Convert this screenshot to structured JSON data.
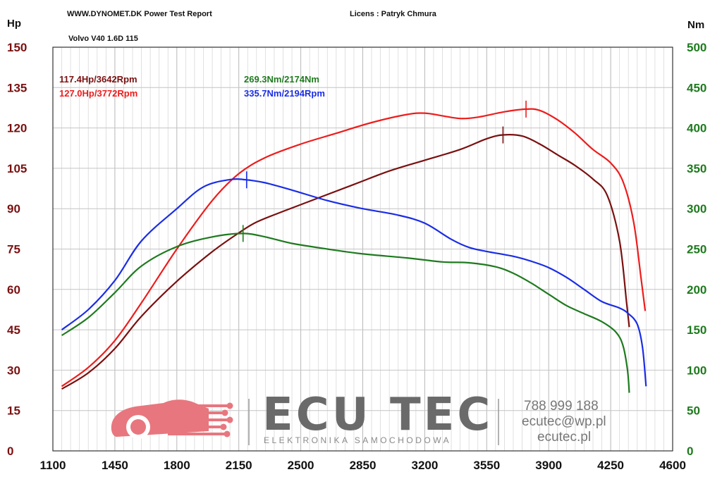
{
  "header": {
    "report": "WWW.DYNOMET.DK  Power Test Report",
    "license": "Licens :  Patryk Chmura",
    "vehicle": "Volvo  V40 1.6D 115"
  },
  "branding": {
    "name": "ECU TEC",
    "tagline": "ELEKTRONIKA SAMOCHODOWA",
    "phone": "788 999 188",
    "email": "ecutec@wp.pl",
    "website": "ecutec.pl",
    "logo_color": "#e8767e"
  },
  "chart_data": {
    "type": "line",
    "xlabel": "",
    "ylabel_left": "Hp",
    "ylabel_right": "Nm",
    "xlim": [
      1100,
      4600
    ],
    "ylim_left": [
      0,
      150
    ],
    "ylim_right": [
      0,
      500
    ],
    "xticks": [
      "1100",
      "1450",
      "1800",
      "2150",
      "2500",
      "2850",
      "3200",
      "3550",
      "3900",
      "4250",
      "4600"
    ],
    "yticks_left": [
      "0",
      "15",
      "30",
      "45",
      "60",
      "75",
      "90",
      "105",
      "120",
      "135",
      "150"
    ],
    "yticks_right": [
      "0",
      "50",
      "100",
      "150",
      "200",
      "250",
      "300",
      "350",
      "400",
      "450",
      "500"
    ],
    "grid": true,
    "annotations": {
      "hp_stock": "117.4Hp/3642Rpm",
      "hp_tuned": "127.0Hp/3772Rpm",
      "nm_stock": "269.3Nm/2174Nm",
      "nm_tuned": "335.7Nm/2194Rpm"
    },
    "series": [
      {
        "axis": "left",
        "color": "#7a1010",
        "peak": [
          3642,
          117.4
        ],
        "points": [
          [
            1150,
            23
          ],
          [
            1300,
            29
          ],
          [
            1450,
            38
          ],
          [
            1600,
            50
          ],
          [
            1800,
            63
          ],
          [
            2000,
            74
          ],
          [
            2150,
            81
          ],
          [
            2250,
            85
          ],
          [
            2400,
            89
          ],
          [
            2600,
            94
          ],
          [
            2800,
            99
          ],
          [
            3000,
            104
          ],
          [
            3200,
            108
          ],
          [
            3400,
            112
          ],
          [
            3550,
            116
          ],
          [
            3642,
            117.4
          ],
          [
            3750,
            117
          ],
          [
            3850,
            114
          ],
          [
            3950,
            110
          ],
          [
            4050,
            106
          ],
          [
            4150,
            101
          ],
          [
            4230,
            95
          ],
          [
            4300,
            78
          ],
          [
            4340,
            55
          ],
          [
            4355,
            46
          ]
        ]
      },
      {
        "axis": "left",
        "color": "#ee1c1c",
        "peak": [
          3772,
          127.0
        ],
        "points": [
          [
            1150,
            24
          ],
          [
            1300,
            31
          ],
          [
            1450,
            41
          ],
          [
            1600,
            55
          ],
          [
            1800,
            75
          ],
          [
            2000,
            93
          ],
          [
            2150,
            103
          ],
          [
            2300,
            109
          ],
          [
            2500,
            114
          ],
          [
            2700,
            118
          ],
          [
            2900,
            122
          ],
          [
            3100,
            125
          ],
          [
            3200,
            125.5
          ],
          [
            3300,
            124.5
          ],
          [
            3400,
            123.5
          ],
          [
            3500,
            124
          ],
          [
            3650,
            126
          ],
          [
            3772,
            127
          ],
          [
            3850,
            126.5
          ],
          [
            3950,
            123
          ],
          [
            4050,
            118
          ],
          [
            4150,
            112
          ],
          [
            4250,
            107
          ],
          [
            4320,
            100
          ],
          [
            4380,
            85
          ],
          [
            4420,
            65
          ],
          [
            4445,
            52
          ]
        ]
      },
      {
        "axis": "right",
        "color": "#1f7a1f",
        "peak": [
          2174,
          269.3
        ],
        "points": [
          [
            1150,
            143
          ],
          [
            1300,
            165
          ],
          [
            1450,
            196
          ],
          [
            1600,
            229
          ],
          [
            1800,
            253
          ],
          [
            2000,
            265
          ],
          [
            2174,
            269.3
          ],
          [
            2300,
            265
          ],
          [
            2450,
            257
          ],
          [
            2650,
            250
          ],
          [
            2850,
            244
          ],
          [
            3100,
            239
          ],
          [
            3300,
            234
          ],
          [
            3450,
            233
          ],
          [
            3600,
            228
          ],
          [
            3700,
            220
          ],
          [
            3800,
            208
          ],
          [
            3900,
            194
          ],
          [
            4000,
            180
          ],
          [
            4100,
            170
          ],
          [
            4200,
            160
          ],
          [
            4280,
            147
          ],
          [
            4320,
            130
          ],
          [
            4345,
            100
          ],
          [
            4355,
            72
          ]
        ]
      },
      {
        "axis": "right",
        "color": "#1a2de6",
        "peak": [
          2194,
          335.7
        ],
        "points": [
          [
            1150,
            150
          ],
          [
            1300,
            175
          ],
          [
            1450,
            211
          ],
          [
            1600,
            260
          ],
          [
            1800,
            300
          ],
          [
            1950,
            327
          ],
          [
            2100,
            336
          ],
          [
            2194,
            335.7
          ],
          [
            2300,
            332
          ],
          [
            2450,
            323
          ],
          [
            2650,
            310
          ],
          [
            2850,
            300
          ],
          [
            3050,
            292
          ],
          [
            3200,
            282
          ],
          [
            3350,
            262
          ],
          [
            3450,
            252
          ],
          [
            3550,
            247
          ],
          [
            3700,
            241
          ],
          [
            3800,
            235
          ],
          [
            3900,
            227
          ],
          [
            4000,
            215
          ],
          [
            4100,
            200
          ],
          [
            4200,
            185
          ],
          [
            4300,
            177
          ],
          [
            4350,
            170
          ],
          [
            4400,
            157
          ],
          [
            4430,
            128
          ],
          [
            4450,
            80
          ]
        ]
      }
    ]
  }
}
